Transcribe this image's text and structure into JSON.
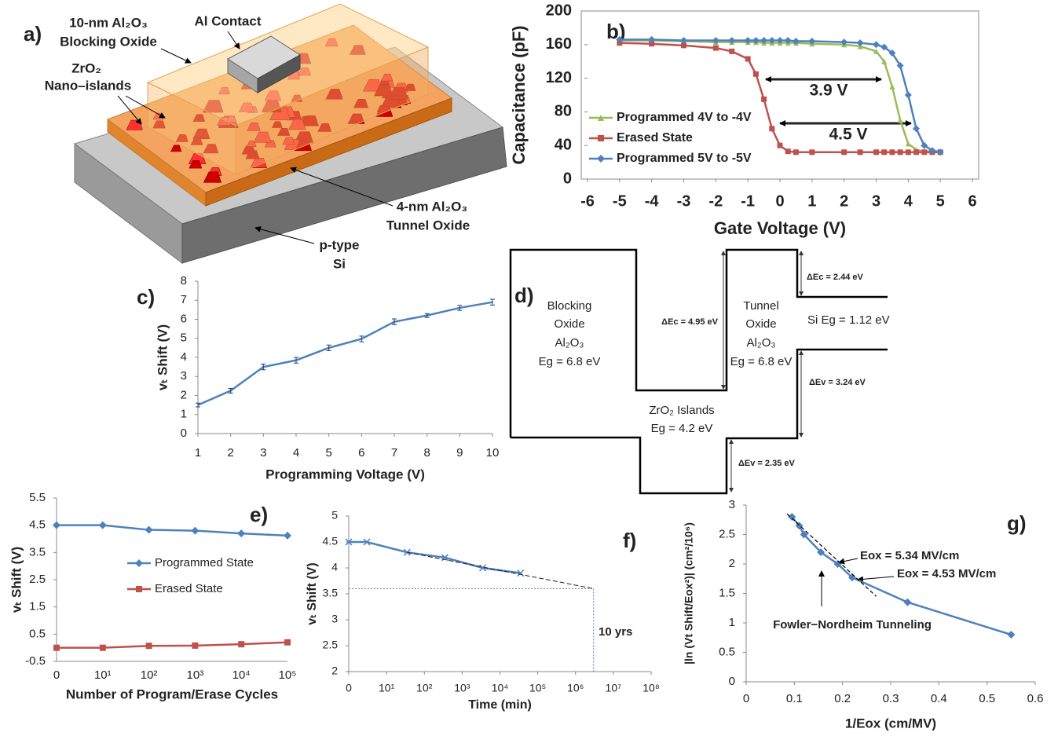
{
  "device_diagram": {
    "panel_label": "a)",
    "labels": [
      "10-nm Al₂O₃",
      "Blocking Oxide",
      "Al Contact",
      "ZrO₂",
      "Nano–islands",
      "4-nm Al₂O₃",
      "Tunnel Oxide",
      "p-type",
      "Si"
    ]
  },
  "band_diagram": {
    "panel_label": "d)",
    "labels": [
      "Blocking",
      "Oxide",
      "Al₂O₃",
      "Eg = 6.8 eV",
      "ΔEc = 4.95 eV",
      "Tunnel",
      "Oxide",
      "Al₂O₃",
      "Eg = 6.8 eV",
      "ΔEc = 2.44 eV",
      "Si Eg = 1.12 eV",
      "ΔEv = 3.24 eV",
      "ZrO₂ Islands",
      "Eg = 4.2 eV",
      "ΔEv = 2.35 eV"
    ]
  },
  "chart_data": [
    {
      "type": "line",
      "panel_label": "b)",
      "xlabel": "Gate Voltage (V)",
      "ylabel": "Capacitance (pF)",
      "x": [
        -5,
        -4,
        -3,
        -2,
        -1.5,
        -1,
        -0.75,
        -0.5,
        -0.25,
        0,
        0.25,
        0.5,
        1,
        2,
        2.5,
        3,
        3.25,
        3.5,
        3.75,
        4,
        4.25,
        4.5,
        4.75,
        5
      ],
      "xlim": [
        -6,
        6
      ],
      "xticks": [
        -6,
        -5,
        -4,
        -3,
        -2,
        -1,
        0,
        1,
        2,
        3,
        4,
        5,
        6
      ],
      "ylim": [
        0,
        200
      ],
      "yticks": [
        0,
        40,
        80,
        120,
        160,
        200
      ],
      "legend": "lower left",
      "series": [
        {
          "name": "Programmed 4V to -4V",
          "color": "#9bbb59",
          "marker": "triangle",
          "values": [
            165,
            165,
            164,
            163,
            163,
            163,
            163,
            162,
            162,
            162,
            162,
            162,
            161,
            160,
            158,
            152,
            140,
            110,
            70,
            42,
            35,
            33,
            33,
            33
          ]
        },
        {
          "name": "Erased State",
          "color": "#c0504d",
          "marker": "square",
          "values": [
            162,
            161,
            159,
            156,
            152,
            143,
            125,
            95,
            60,
            40,
            33,
            32,
            32,
            32,
            32,
            32,
            32,
            32,
            32,
            32,
            32,
            32,
            32,
            32
          ]
        },
        {
          "name": "Programmed 5V to -5V",
          "color": "#4f81bd",
          "marker": "diamond",
          "values": [
            166,
            166,
            165,
            165,
            165,
            165,
            165,
            165,
            165,
            165,
            165,
            164,
            164,
            163,
            162,
            160,
            157,
            150,
            135,
            100,
            60,
            40,
            34,
            32
          ]
        }
      ],
      "annotations": [
        "3.9 V",
        "4.5 V"
      ]
    },
    {
      "type": "line",
      "panel_label": "c)",
      "xlabel": "Programming Voltage (V)",
      "ylabel": "vₜ Shift (V)",
      "x": [
        1,
        2,
        3,
        4,
        5,
        6,
        7,
        8,
        9,
        10
      ],
      "xlim": [
        1,
        10
      ],
      "xticks": [
        1,
        2,
        3,
        4,
        5,
        6,
        7,
        8,
        9,
        10
      ],
      "ylim": [
        0,
        8
      ],
      "yticks": [
        0,
        1,
        2,
        3,
        4,
        5,
        6,
        7,
        8
      ],
      "series": [
        {
          "color": "#4f81bd",
          "marker": "none",
          "values": [
            1.5,
            2.25,
            3.5,
            3.85,
            4.5,
            4.97,
            5.87,
            6.2,
            6.6,
            6.9
          ],
          "errors": [
            0.1,
            0.12,
            0.15,
            0.15,
            0.15,
            0.15,
            0.15,
            0.1,
            0.13,
            0.15
          ]
        }
      ]
    },
    {
      "type": "line",
      "panel_label": "e)",
      "xlabel": "Number of Program/Erase  Cycles",
      "ylabel": "vₜ Shift (V)",
      "categories": [
        "0",
        "10¹",
        "10²",
        "10³",
        "10⁴",
        "10⁵"
      ],
      "ylim": [
        -0.5,
        5.5
      ],
      "yticks": [
        -0.5,
        0.5,
        1.5,
        2.5,
        3.5,
        4.5,
        5.5
      ],
      "legend": "center",
      "series": [
        {
          "name": "Programmed State",
          "color": "#4f81bd",
          "marker": "diamond",
          "values": [
            4.5,
            4.5,
            4.33,
            4.3,
            4.2,
            4.12
          ]
        },
        {
          "name": "Erased State",
          "color": "#c0504d",
          "marker": "square",
          "values": [
            0,
            0,
            0.07,
            0.08,
            0.13,
            0.2
          ]
        }
      ]
    },
    {
      "type": "line",
      "panel_label": "f)",
      "xlabel": "Time (min)",
      "ylabel": "vₜ Shift (V)",
      "xscale": "log",
      "x": [
        0,
        3,
        35,
        350,
        3500,
        35000
      ],
      "xlim": [
        0,
        100000000
      ],
      "xticks": [
        {
          "value": 0,
          "label": "0"
        },
        {
          "value": 10,
          "label": "10¹"
        },
        {
          "value": 100,
          "label": "10²"
        },
        {
          "value": 1000,
          "label": "10³"
        },
        {
          "value": 10000,
          "label": "10⁴"
        },
        {
          "value": 100000,
          "label": "10⁵"
        },
        {
          "value": 1000000,
          "label": "10⁶"
        },
        {
          "value": 10000000,
          "label": "10⁷"
        },
        {
          "value": 100000000,
          "label": "10⁸"
        }
      ],
      "ylim": [
        2,
        5
      ],
      "yticks": [
        2,
        2.5,
        3,
        3.5,
        4,
        4.5,
        5
      ],
      "series": [
        {
          "color": "#4f81bd",
          "marker": "x",
          "values": [
            4.5,
            4.5,
            4.3,
            4.2,
            4.0,
            3.9
          ]
        }
      ],
      "extrapolation": {
        "x": 3000000,
        "y": 3.6
      },
      "annotations": [
        "10 yrs"
      ]
    },
    {
      "type": "line",
      "panel_label": "g)",
      "xlabel": "1/Eox (cm/MV)",
      "ylabel": "|ln (Vt Shift/Eox²)| (cm²/10⁶)",
      "xlim": [
        0,
        0.6
      ],
      "xticks": [
        0,
        0.1,
        0.2,
        0.3,
        0.4,
        0.5,
        0.6
      ],
      "ylim": [
        0,
        3
      ],
      "yticks": [
        0,
        0.5,
        1,
        1.5,
        2,
        2.5,
        3
      ],
      "series": [
        {
          "color": "#4f81bd",
          "marker": "diamond",
          "x": [
            0.095,
            0.11,
            0.12,
            0.155,
            0.19,
            0.22,
            0.335,
            0.55
          ],
          "values": [
            2.8,
            2.65,
            2.5,
            2.2,
            2.0,
            1.77,
            1.35,
            0.8
          ]
        },
        {
          "color": "#000000",
          "marker": "none",
          "style": "dashed",
          "x": [
            0.085,
            0.27
          ],
          "values": [
            2.85,
            1.45
          ]
        }
      ],
      "annotations": [
        "Eox = 5.34 MV/cm",
        "Eox = 4.53 MV/cm",
        "Fowler−Nordheim Tunneling"
      ]
    }
  ]
}
